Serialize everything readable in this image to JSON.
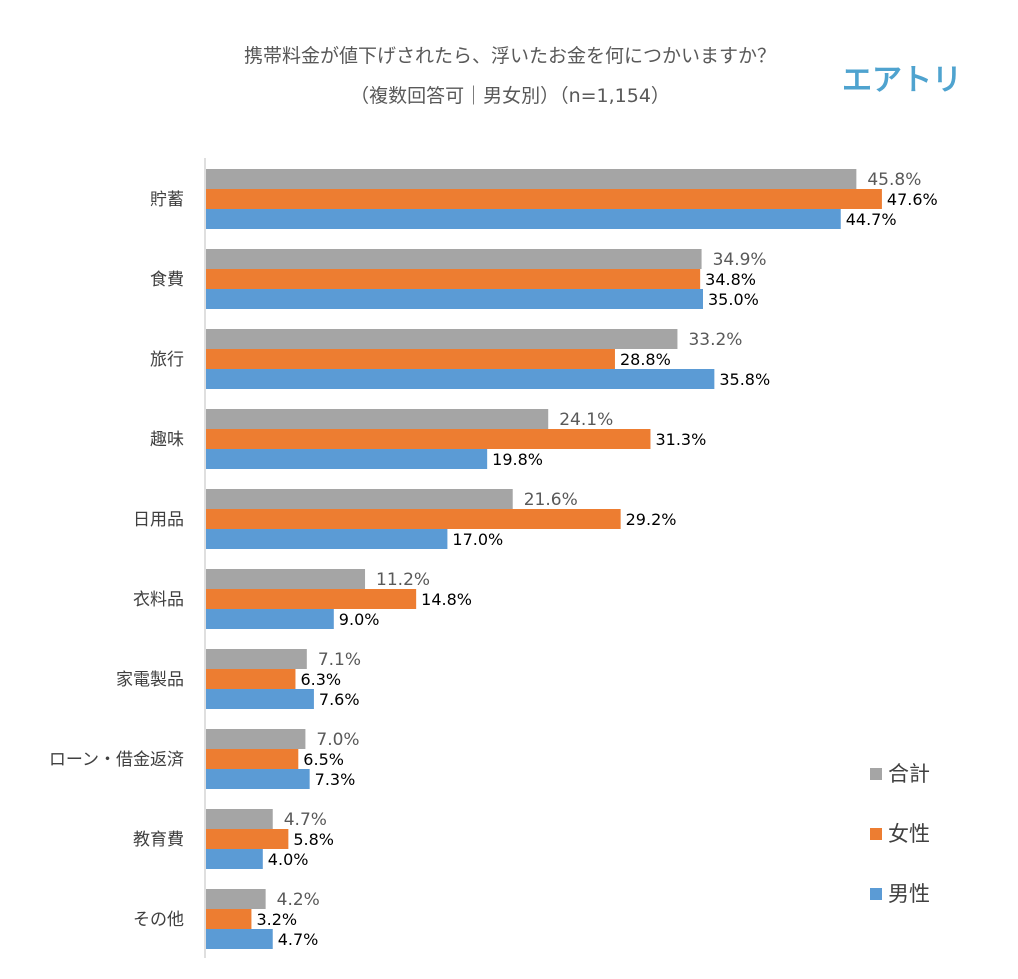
{
  "header": {
    "title_line1": "携帯料金が値下げされたら、浮いたお金を何につかいますか？",
    "title_line2": "（複数回答可｜男女別）（n=1,154）",
    "logo_text": "エアトリ"
  },
  "colors": {
    "total": "#a5a5a5",
    "female": "#ed7d31",
    "male": "#5b9bd5",
    "axis": "#bfbfbf",
    "logo": "#4fa3cf"
  },
  "chart_data": {
    "type": "bar",
    "orientation": "horizontal",
    "title": "携帯料金が値下げされたら、浮いたお金を何につかいますか？（複数回答可｜男女別）（n=1,154）",
    "categories": [
      "貯蓄",
      "食費",
      "旅行",
      "趣味",
      "日用品",
      "衣料品",
      "家電製品",
      "ローン・借金返済",
      "教育費",
      "その他"
    ],
    "series": [
      {
        "name": "合計",
        "values": [
          45.8,
          34.9,
          33.2,
          24.1,
          21.6,
          11.2,
          7.1,
          7.0,
          4.7,
          4.2
        ],
        "labels": [
          "45.8%",
          "34.9%",
          "33.2%",
          "24.1%",
          "21.6%",
          "11.2%",
          "7.1%",
          "7.0%",
          "4.7%",
          "4.2%"
        ]
      },
      {
        "name": "女性",
        "values": [
          47.6,
          34.8,
          28.8,
          31.3,
          29.2,
          14.8,
          6.3,
          6.5,
          5.8,
          3.2
        ],
        "labels": [
          "47.6%",
          "34.8%",
          "28.8%",
          "31.3%",
          "29.2%",
          "14.8%",
          "6.3%",
          "6.5%",
          "5.8%",
          "3.2%"
        ]
      },
      {
        "name": "男性",
        "values": [
          44.7,
          35.0,
          35.8,
          19.8,
          17.0,
          9.0,
          7.6,
          7.3,
          4.0,
          4.7
        ],
        "labels": [
          "44.7%",
          "35.0%",
          "35.8%",
          "19.8%",
          "17.0%",
          "9.0%",
          "7.6%",
          "7.3%",
          "4.0%",
          "4.7%"
        ]
      }
    ],
    "xlim": [
      0,
      50
    ],
    "xlabel": "",
    "ylabel": "",
    "grid": false,
    "legend_position": "bottom-right"
  }
}
